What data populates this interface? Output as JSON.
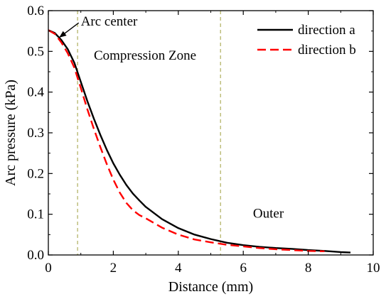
{
  "chart_data": {
    "type": "line",
    "xlabel": "Distance (mm)",
    "ylabel": "Arc pressure (kPa)",
    "xlim": [
      0,
      10
    ],
    "ylim": [
      0,
      0.6
    ],
    "xticks": [
      0,
      2,
      4,
      6,
      8,
      10
    ],
    "yticks": [
      0.0,
      0.1,
      0.2,
      0.3,
      0.4,
      0.5,
      0.6
    ],
    "xtick_labels": [
      "0",
      "2",
      "4",
      "6",
      "8",
      "10"
    ],
    "ytick_labels": [
      "0.0",
      "0.1",
      "0.2",
      "0.3",
      "0.4",
      "0.5",
      "0.6"
    ],
    "grid": false,
    "legend_position": "top-right",
    "vlines": [
      0.9,
      5.3
    ],
    "vline_color": "#b5b56a",
    "series": [
      {
        "name": "direction a",
        "color": "#000000",
        "style": "solid",
        "x": [
          0,
          0.2,
          0.4,
          0.6,
          0.8,
          1.0,
          1.2,
          1.4,
          1.6,
          1.8,
          2.0,
          2.2,
          2.4,
          2.6,
          2.8,
          3.0,
          3.5,
          4.0,
          4.5,
          5.0,
          5.5,
          6.0,
          6.5,
          7.0,
          7.5,
          8.0,
          8.5,
          9.0,
          9.3
        ],
        "y": [
          0.552,
          0.545,
          0.528,
          0.505,
          0.472,
          0.425,
          0.378,
          0.335,
          0.295,
          0.258,
          0.225,
          0.197,
          0.172,
          0.151,
          0.134,
          0.118,
          0.088,
          0.066,
          0.05,
          0.039,
          0.03,
          0.024,
          0.02,
          0.017,
          0.015,
          0.012,
          0.01,
          0.007,
          0.006
        ]
      },
      {
        "name": "direction b",
        "color": "#ff0000",
        "style": "dashed",
        "x": [
          0,
          0.2,
          0.4,
          0.6,
          0.8,
          1.0,
          1.2,
          1.4,
          1.6,
          1.8,
          2.0,
          2.2,
          2.4,
          2.6,
          2.8,
          3.0,
          3.5,
          4.0,
          4.5,
          5.0,
          5.5,
          6.0,
          6.5,
          7.0,
          7.5,
          8.0,
          8.5
        ],
        "y": [
          0.552,
          0.543,
          0.522,
          0.495,
          0.46,
          0.41,
          0.358,
          0.31,
          0.265,
          0.223,
          0.185,
          0.153,
          0.128,
          0.11,
          0.098,
          0.09,
          0.067,
          0.05,
          0.038,
          0.031,
          0.025,
          0.021,
          0.017,
          0.014,
          0.012,
          0.01,
          0.009
        ]
      }
    ],
    "annotations": [
      {
        "text": "Arc center",
        "x": 1.0,
        "y": 0.563,
        "arrow_to": [
          0.35,
          0.535
        ]
      },
      {
        "text": "Compression Zone",
        "x": 1.4,
        "y": 0.48
      },
      {
        "text": "Outer",
        "x": 6.3,
        "y": 0.092
      }
    ]
  }
}
